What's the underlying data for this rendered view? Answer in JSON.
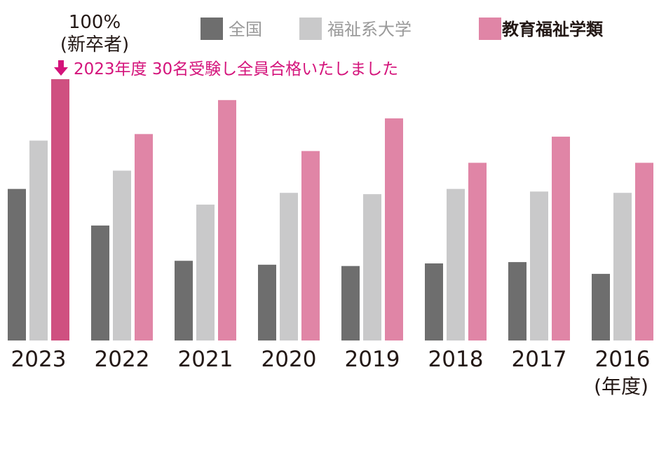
{
  "chart_data": {
    "type": "bar",
    "categories": [
      "2023",
      "2022",
      "2021",
      "2020",
      "2019",
      "2018",
      "2017",
      "2016"
    ],
    "series": [
      {
        "name": "全国",
        "color": "#6e6e6e",
        "values": [
          58,
          44,
          30.5,
          29,
          28.5,
          29.5,
          30,
          25.5
        ]
      },
      {
        "name": "福祉系大学",
        "color": "#c9c9ca",
        "values": [
          76.5,
          65,
          52,
          56.5,
          56,
          58,
          57,
          56.5
        ]
      },
      {
        "name": "教育福祉学類",
        "color": "#e085a6",
        "highlight_color": "#cf5080",
        "values": [
          100,
          79,
          92,
          72.5,
          85,
          68,
          78,
          68
        ]
      }
    ],
    "ylim": [
      0,
      100
    ],
    "grid": false,
    "legend_position": "top",
    "xlabel": "(年度)",
    "top_value_label": "100%",
    "top_value_sublabel": "(新卒者)",
    "annotation": {
      "category": "2023",
      "arrow_icon": "down-arrow-icon",
      "text": "2023年度 30名受験し全員合格いたしました",
      "color": "#d4137b"
    }
  }
}
